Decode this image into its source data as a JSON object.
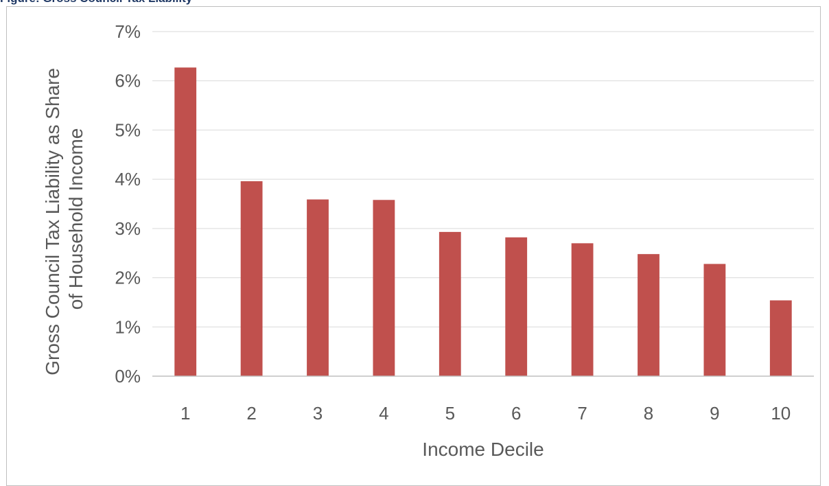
{
  "figure": {
    "caption": "Figure: Gross Council Tax Liability"
  },
  "colors": {
    "bar": "#c0504d",
    "grid": "#d9d9d9",
    "axis": "#bfbfbf",
    "text": "#595959"
  },
  "chart_data": {
    "type": "bar",
    "title": "",
    "xlabel": "Income Decile",
    "ylabel_lines": [
      "Gross Council Tax Liability as Share",
      "of Household Income"
    ],
    "categories": [
      "1",
      "2",
      "3",
      "4",
      "5",
      "6",
      "7",
      "8",
      "9",
      "10"
    ],
    "values": [
      0.0627,
      0.0396,
      0.0359,
      0.0358,
      0.0293,
      0.0282,
      0.027,
      0.0248,
      0.0228,
      0.0154
    ],
    "ylim": [
      0,
      0.07
    ],
    "yticks": [
      0,
      0.01,
      0.02,
      0.03,
      0.04,
      0.05,
      0.06,
      0.07
    ],
    "ytick_labels": [
      "0%",
      "1%",
      "2%",
      "3%",
      "4%",
      "5%",
      "6%",
      "7%"
    ],
    "grid": true,
    "legend": "none"
  }
}
